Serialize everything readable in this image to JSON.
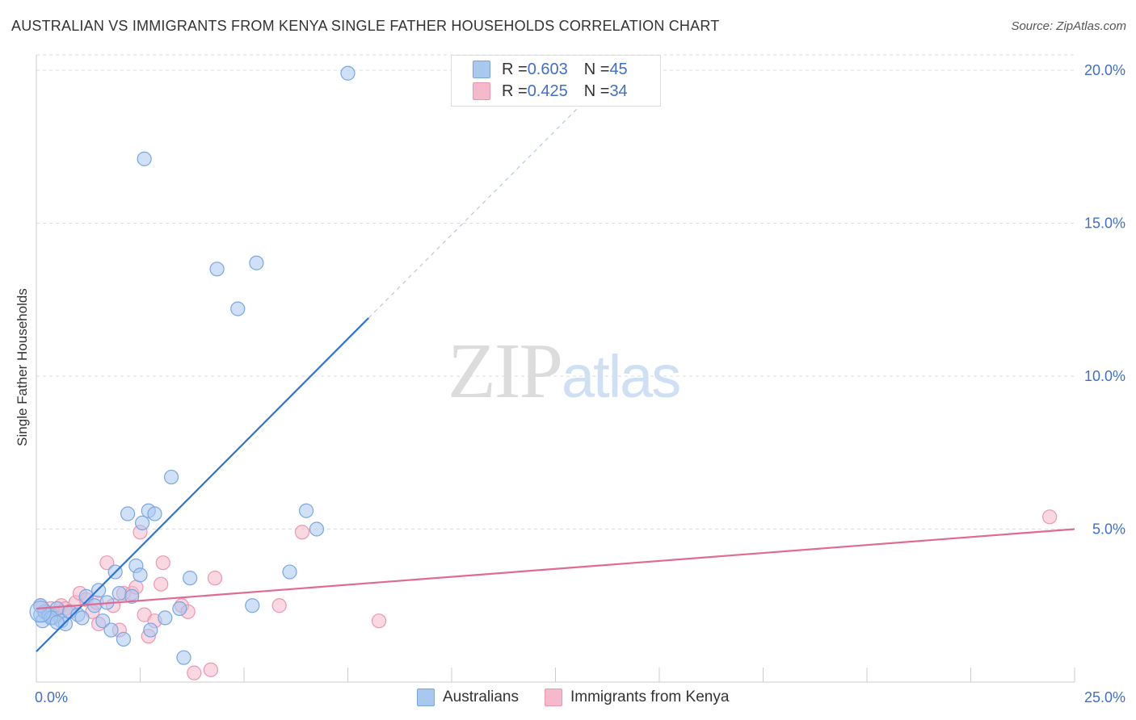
{
  "title": "AUSTRALIAN VS IMMIGRANTS FROM KENYA SINGLE FATHER HOUSEHOLDS CORRELATION CHART",
  "source": "Source: ZipAtlas.com",
  "watermark": {
    "zip": "ZIP",
    "atlas": "atlas"
  },
  "legend": {
    "series1": {
      "r_label": "R = ",
      "r_value": "0.603",
      "n_label": "N = ",
      "n_value": "45"
    },
    "series2": {
      "r_label": "R = ",
      "r_value": "0.425",
      "n_label": "N = ",
      "n_value": "34"
    }
  },
  "bottom_legend": {
    "series1": "Australians",
    "series2": "Immigrants from Kenya"
  },
  "colors": {
    "blue_fill": "#a9c8f0",
    "blue_stroke": "#7aa6e0",
    "blue_line": "#2f74d0",
    "pink_fill": "#f6b8cb",
    "pink_stroke": "#ee95b0",
    "pink_line": "#e06a94",
    "grid": "#dddddd",
    "tick_text": "#3f6fc9"
  },
  "chart_data": {
    "type": "scatter",
    "title": "AUSTRALIAN VS IMMIGRANTS FROM KENYA SINGLE FATHER HOUSEHOLDS CORRELATION CHART",
    "xlabel": "",
    "ylabel": "Single Father Households",
    "xlim": [
      0,
      25
    ],
    "ylim": [
      0,
      20.5
    ],
    "x_tick_labels": [
      "0.0%",
      "25.0%"
    ],
    "y_ticks": [
      5,
      10,
      15,
      20
    ],
    "y_tick_labels": [
      "5.0%",
      "10.0%",
      "15.0%",
      "20.0%"
    ],
    "grid": true,
    "legend_position": "top-center",
    "series": [
      {
        "name": "Australians",
        "R": 0.603,
        "N": 45,
        "trend": {
          "x0": 0,
          "y0": 1.0,
          "x1": 8.0,
          "y1": 11.9,
          "dashed_to_x": 13.2
        },
        "points": [
          [
            0.1,
            2.2
          ],
          [
            0.15,
            2.0
          ],
          [
            0.2,
            2.3
          ],
          [
            0.3,
            2.2
          ],
          [
            0.4,
            2.1
          ],
          [
            0.5,
            2.4
          ],
          [
            0.6,
            2.0
          ],
          [
            0.7,
            1.9
          ],
          [
            0.8,
            2.3
          ],
          [
            1.0,
            2.2
          ],
          [
            1.1,
            2.1
          ],
          [
            1.2,
            2.8
          ],
          [
            1.4,
            2.5
          ],
          [
            1.5,
            3.0
          ],
          [
            1.6,
            2.0
          ],
          [
            1.7,
            2.6
          ],
          [
            1.8,
            1.7
          ],
          [
            1.9,
            3.6
          ],
          [
            2.0,
            2.9
          ],
          [
            2.1,
            1.4
          ],
          [
            2.2,
            5.5
          ],
          [
            2.3,
            2.8
          ],
          [
            2.4,
            3.8
          ],
          [
            2.5,
            3.5
          ],
          [
            2.55,
            5.2
          ],
          [
            2.6,
            17.1
          ],
          [
            2.7,
            5.6
          ],
          [
            2.75,
            1.7
          ],
          [
            2.85,
            5.5
          ],
          [
            3.1,
            2.1
          ],
          [
            3.25,
            6.7
          ],
          [
            3.45,
            2.4
          ],
          [
            3.55,
            0.8
          ],
          [
            3.7,
            3.4
          ],
          [
            4.35,
            13.5
          ],
          [
            4.85,
            12.2
          ],
          [
            5.2,
            2.5
          ],
          [
            5.3,
            13.7
          ],
          [
            6.1,
            3.6
          ],
          [
            6.5,
            5.6
          ],
          [
            6.75,
            5.0
          ],
          [
            7.5,
            19.9
          ],
          [
            0.1,
            2.5
          ],
          [
            0.35,
            2.1
          ],
          [
            0.5,
            1.95
          ]
        ]
      },
      {
        "name": "Immigrants from Kenya",
        "R": 0.425,
        "N": 34,
        "trend": {
          "x0": 0,
          "y0": 2.4,
          "x1": 25,
          "y1": 5.0
        },
        "points": [
          [
            0.1,
            2.5
          ],
          [
            0.2,
            2.3
          ],
          [
            0.35,
            2.4
          ],
          [
            0.5,
            2.2
          ],
          [
            0.6,
            2.5
          ],
          [
            0.7,
            2.4
          ],
          [
            0.8,
            2.3
          ],
          [
            0.95,
            2.6
          ],
          [
            1.05,
            2.9
          ],
          [
            1.2,
            2.7
          ],
          [
            1.35,
            2.3
          ],
          [
            1.45,
            2.6
          ],
          [
            1.5,
            1.9
          ],
          [
            1.7,
            3.9
          ],
          [
            1.85,
            2.5
          ],
          [
            2.0,
            1.7
          ],
          [
            2.1,
            2.9
          ],
          [
            2.3,
            2.9
          ],
          [
            2.4,
            3.1
          ],
          [
            2.5,
            4.9
          ],
          [
            2.6,
            2.2
          ],
          [
            2.7,
            1.5
          ],
          [
            2.85,
            2.0
          ],
          [
            3.0,
            3.2
          ],
          [
            3.05,
            3.9
          ],
          [
            3.5,
            2.5
          ],
          [
            3.65,
            2.3
          ],
          [
            3.8,
            0.3
          ],
          [
            4.2,
            0.4
          ],
          [
            4.3,
            3.4
          ],
          [
            5.85,
            2.5
          ],
          [
            6.4,
            4.9
          ],
          [
            8.25,
            2.0
          ],
          [
            24.4,
            5.4
          ]
        ]
      }
    ]
  }
}
